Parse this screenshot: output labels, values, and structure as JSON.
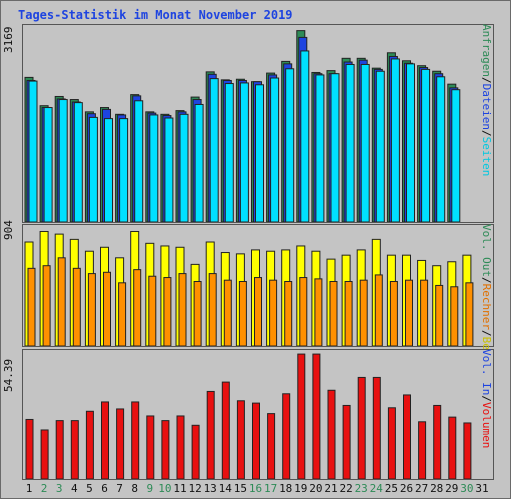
{
  "title": "Tages-Statistik im Monat November 2019",
  "colors": {
    "anfragen": "#2e8b57",
    "dateien": "#1e44e0",
    "seiten": "#00e0ff",
    "besuche": "#ffff00",
    "rechner": "#ff9000",
    "volumen": "#e81010",
    "weekend": "#2e8b57",
    "weekday": "#111111"
  },
  "panel1": {
    "ymax_label": "3169",
    "legend": {
      "anfragen": "Anfragen",
      "dateien": "Dateien",
      "seiten": "Seiten",
      "sep1": "/",
      "sep2": "/"
    }
  },
  "panel2": {
    "ymax_label": "904",
    "legend": {
      "besuche": "Besuche",
      "rechner": "Rechner",
      "out": "Vol. Out",
      "sep1": "/",
      "sep2": "/"
    }
  },
  "panel3": {
    "ymax_label": "54.39",
    "legend": {
      "volumen": "Volumen",
      "in": "Vol. In",
      "sep1": "/"
    }
  },
  "chart_data": [
    {
      "type": "bar",
      "name": "panel-anfragen-dateien-seiten",
      "categories": [
        "1",
        "2",
        "3",
        "4",
        "5",
        "6",
        "7",
        "8",
        "9",
        "10",
        "11",
        "12",
        "13",
        "14",
        "15",
        "16",
        "17",
        "18",
        "19",
        "20",
        "21",
        "22",
        "23",
        "24",
        "25",
        "26",
        "27",
        "28",
        "29",
        "30",
        "31"
      ],
      "ylim": [
        0,
        3169
      ],
      "series": [
        {
          "name": "Anfragen",
          "values": [
            2350,
            1890,
            2040,
            1990,
            1790,
            1860,
            1750,
            2070,
            1790,
            1750,
            1810,
            2030,
            2440,
            2310,
            2320,
            2280,
            2420,
            2610,
            3110,
            2430,
            2460,
            2660,
            2660,
            2500,
            2750,
            2620,
            2540,
            2450,
            2240,
            null,
            null
          ]
        },
        {
          "name": "Dateien",
          "values": [
            2300,
            1860,
            2000,
            1950,
            1760,
            1830,
            1740,
            2050,
            1770,
            1730,
            1790,
            1990,
            2400,
            2300,
            2300,
            2280,
            2390,
            2570,
            3000,
            2410,
            2410,
            2600,
            2630,
            2480,
            2690,
            2580,
            2510,
            2410,
            2180,
            null,
            null
          ]
        },
        {
          "name": "Seiten",
          "values": [
            2290,
            1860,
            1990,
            1940,
            1700,
            1680,
            1680,
            1970,
            1740,
            1690,
            1750,
            1910,
            2330,
            2250,
            2260,
            2230,
            2340,
            2490,
            2780,
            2390,
            2410,
            2560,
            2560,
            2450,
            2650,
            2570,
            2480,
            2360,
            2150,
            null,
            null
          ]
        }
      ]
    },
    {
      "type": "bar",
      "name": "panel-besuche-rechner",
      "categories": [
        "1",
        "2",
        "3",
        "4",
        "5",
        "6",
        "7",
        "8",
        "9",
        "10",
        "11",
        "12",
        "13",
        "14",
        "15",
        "16",
        "17",
        "18",
        "19",
        "20",
        "21",
        "22",
        "23",
        "24",
        "25",
        "26",
        "27",
        "28",
        "29",
        "30",
        "31"
      ],
      "ylim": [
        0,
        904
      ],
      "series": [
        {
          "name": "Besuche",
          "values": [
            790,
            870,
            850,
            810,
            720,
            750,
            670,
            870,
            780,
            760,
            750,
            620,
            790,
            710,
            700,
            730,
            720,
            730,
            760,
            720,
            660,
            690,
            730,
            810,
            690,
            690,
            650,
            610,
            640,
            690,
            null
          ]
        },
        {
          "name": "Rechner",
          "values": [
            590,
            610,
            670,
            590,
            550,
            560,
            480,
            580,
            530,
            520,
            550,
            490,
            550,
            500,
            490,
            520,
            500,
            490,
            520,
            510,
            490,
            490,
            500,
            540,
            490,
            500,
            500,
            460,
            450,
            480,
            null
          ]
        }
      ]
    },
    {
      "type": "bar",
      "name": "panel-volumen",
      "categories": [
        "1",
        "2",
        "3",
        "4",
        "5",
        "6",
        "7",
        "8",
        "9",
        "10",
        "11",
        "12",
        "13",
        "14",
        "15",
        "16",
        "17",
        "18",
        "19",
        "20",
        "21",
        "22",
        "23",
        "24",
        "25",
        "26",
        "27",
        "28",
        "29",
        "30",
        "31"
      ],
      "ylim": [
        0,
        54.39
      ],
      "series": [
        {
          "name": "Volumen",
          "values": [
            25.5,
            21.0,
            25.0,
            25.0,
            29.0,
            33.0,
            30.0,
            33.0,
            27.0,
            25.0,
            27.0,
            23.0,
            37.5,
            41.5,
            33.5,
            32.5,
            28.0,
            36.5,
            53.5,
            53.5,
            38.0,
            31.5,
            43.5,
            43.5,
            30.5,
            36.0,
            24.5,
            31.5,
            26.5,
            24.0,
            null
          ]
        }
      ]
    }
  ]
}
